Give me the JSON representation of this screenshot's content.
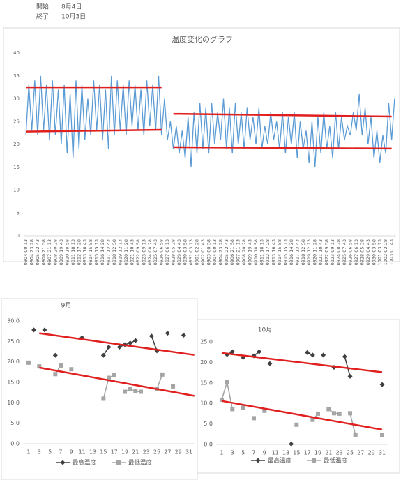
{
  "header": {
    "rows": [
      [
        "開始",
        "8月4日"
      ],
      [
        "終了",
        "10月3日"
      ]
    ]
  },
  "chart_data": [
    {
      "type": "line",
      "title": "温度変化のグラフ",
      "categories": [
        "0804 00:13",
        null,
        "0804 23:28",
        null,
        "0805 22:43",
        null,
        "0806 21:58",
        null,
        "0807 21:13",
        null,
        "0808 20:28",
        null,
        "0809 19:43",
        null,
        "0810 18:58",
        null,
        "0811 18:13",
        null,
        "0812 17:28",
        null,
        "0813 16:43",
        null,
        "0814 15:58",
        null,
        "0815 15:13",
        null,
        "0816 14:28",
        null,
        "0817 13:43",
        null,
        "0818 12:58",
        null,
        "0819 12:13",
        null,
        "0820 11:28",
        null,
        "0821 10:43",
        null,
        "0822 09:58",
        null,
        "0823 09:13",
        null,
        "0824 08:28",
        null,
        "0825 07:43",
        null,
        "0826 06:58",
        null,
        "0827 06:13",
        null,
        "0828 05:28",
        null,
        "0829 04:43",
        null,
        "0830 03:58",
        null,
        "0831 03:13",
        null,
        "0901 02:28",
        null,
        "0902 01:43",
        null,
        "0903 00:58",
        null,
        "0904 00:13",
        null,
        "0904 23:28",
        null,
        "0905 22:43",
        null,
        "0906 21:58",
        null,
        "0907 21:13",
        null,
        "0908 20:28",
        null,
        "0909 19:43",
        null,
        "0910 18:58",
        null,
        "0911 18:13",
        null,
        "0912 17:28",
        null,
        "0913 16:43",
        null,
        "0914 15:58",
        null,
        "0915 15:13",
        null,
        "0916 14:28",
        null,
        "0917 13:43",
        null,
        "0918 12:58",
        null,
        "0919 12:13",
        null,
        "0920 11:28",
        null,
        "0921 10:43",
        null,
        "0922 09:58",
        null,
        "0923 09:13",
        null,
        "0924 08:28",
        null,
        "0925 07:43",
        null,
        "0926 06:58",
        null,
        "0927 06:13",
        null,
        "0928 05:28",
        null,
        "0929 04:43",
        null,
        "0930 03:58",
        null,
        "1001 03:13",
        null,
        "1002 02:28",
        null,
        "1003 01:43",
        null
      ],
      "series": [
        {
          "color": "#5b9bd5",
          "values": [
            22,
            33,
            23,
            34,
            22,
            35,
            23,
            33,
            21,
            34,
            22,
            32,
            20,
            33,
            18,
            31,
            17,
            34,
            19,
            33,
            21,
            30,
            22,
            34,
            23,
            33,
            21,
            32,
            19,
            35,
            22,
            34,
            23,
            33,
            22,
            34,
            24,
            33,
            23,
            32,
            22,
            34,
            24,
            33,
            23,
            35,
            22,
            30,
            21,
            25,
            19,
            24,
            18,
            23,
            17,
            26,
            15,
            27,
            18,
            29,
            19,
            28,
            18,
            29,
            20,
            27,
            21,
            30,
            19,
            28,
            18,
            29,
            20,
            27,
            19,
            28,
            21,
            26,
            20,
            28,
            19,
            24,
            20,
            27,
            21,
            25,
            19,
            27,
            18,
            26,
            20,
            27,
            17,
            25,
            19,
            23,
            16,
            25,
            15,
            26,
            18,
            27,
            19,
            24,
            17,
            27,
            19,
            26,
            21,
            24,
            22,
            27,
            23,
            31,
            22,
            28,
            20,
            26,
            17,
            23,
            16,
            22,
            18,
            29,
            21,
            30
          ]
        }
      ],
      "ylim": [
        0,
        40
      ],
      "yticks": [
        0,
        5,
        10,
        15,
        20,
        25,
        30,
        35,
        40
      ],
      "trend_lines": [
        {
          "color": "#e0201f",
          "x": [
            "0804 00:13",
            "0826 06:58"
          ],
          "values": [
            32.5,
            32.5
          ]
        },
        {
          "color": "#e0201f",
          "x": [
            "0804 00:13",
            "0826 06:58"
          ],
          "values": [
            22.8,
            23.2
          ]
        },
        {
          "color": "#e0201f",
          "x": [
            "0828 05:28",
            "1003 01:43"
          ],
          "values": [
            26.7,
            26.1
          ]
        },
        {
          "color": "#e0201f",
          "x": [
            "0828 05:28",
            "1003 01:43"
          ],
          "values": [
            19.4,
            19.1
          ]
        }
      ]
    },
    {
      "type": "line",
      "title": "9月",
      "x": [
        1,
        2,
        3,
        4,
        5,
        6,
        7,
        8,
        9,
        10,
        11,
        12,
        13,
        14,
        15,
        16,
        17,
        18,
        19,
        20,
        21,
        22,
        23,
        24,
        25,
        26,
        27,
        28,
        29,
        30,
        31
      ],
      "xlim": [
        0,
        32
      ],
      "xticks": [
        1,
        3,
        5,
        7,
        9,
        11,
        13,
        15,
        17,
        19,
        21,
        23,
        25,
        27,
        29,
        31
      ],
      "ylim": [
        0,
        30
      ],
      "yticks": [
        {
          "value": 0,
          "label": "0.0"
        },
        {
          "value": 5,
          "label": "5.0"
        },
        {
          "value": 10,
          "label": "10.0"
        },
        {
          "value": 15,
          "label": "15.0"
        },
        {
          "value": 20,
          "label": "20.0"
        },
        {
          "value": 25,
          "label": "25.0"
        },
        {
          "value": 30,
          "label": "30.0"
        }
      ],
      "series": [
        {
          "name": "最高温度",
          "color": "#404040",
          "marker": "diamond",
          "values": [
            null,
            27.8,
            null,
            27.8,
            null,
            21.6,
            null,
            null,
            null,
            null,
            25.9,
            null,
            null,
            null,
            21.6,
            23.6,
            null,
            23.6,
            24.2,
            24.6,
            25.2,
            null,
            null,
            26.3,
            22.7,
            null,
            27.0,
            null,
            null,
            26.5,
            null
          ]
        },
        {
          "name": "最低温度",
          "color": "#a5a5a5",
          "marker": "square",
          "values": [
            19.8,
            null,
            18.9,
            null,
            null,
            17.0,
            19.1,
            null,
            18.2,
            null,
            null,
            null,
            null,
            null,
            11.0,
            16.1,
            16.7,
            null,
            12.7,
            13.3,
            12.8,
            12.7,
            null,
            null,
            13.4,
            16.9,
            null,
            14.0,
            null,
            null,
            null
          ]
        }
      ],
      "trend_lines": [
        {
          "color": "#e0201f",
          "x": [
            3,
            32
          ],
          "values": [
            27.0,
            21.7
          ]
        },
        {
          "color": "#e0201f",
          "x": [
            3,
            32
          ],
          "values": [
            18.6,
            11.7
          ]
        }
      ]
    },
    {
      "type": "line",
      "title": "10月",
      "x": [
        1,
        2,
        3,
        4,
        5,
        6,
        7,
        8,
        9,
        10,
        11,
        12,
        13,
        14,
        15,
        16,
        17,
        18,
        19,
        20,
        21,
        22,
        23,
        24,
        25,
        26,
        27,
        28,
        29,
        30,
        31
      ],
      "xlim": [
        0,
        32
      ],
      "xticks": [
        1,
        3,
        5,
        7,
        9,
        11,
        13,
        15,
        17,
        19,
        21,
        23,
        25,
        27,
        29,
        31
      ],
      "ylim": [
        0,
        25
      ],
      "yticks": [
        {
          "value": 0,
          "label": "0.0"
        },
        {
          "value": 5,
          "label": "5.0"
        },
        {
          "value": 10,
          "label": "10.0"
        },
        {
          "value": 15,
          "label": "15.0"
        },
        {
          "value": 20,
          "label": "20.0"
        },
        {
          "value": 25,
          "label": "25.0"
        }
      ],
      "series": [
        {
          "name": "最高温度",
          "color": "#404040",
          "marker": "diamond",
          "values": [
            null,
            21.9,
            22.6,
            null,
            21.2,
            null,
            21.6,
            22.6,
            null,
            19.7,
            null,
            null,
            null,
            0.1,
            null,
            null,
            22.4,
            21.8,
            null,
            21.8,
            null,
            18.8,
            null,
            21.4,
            16.6,
            null,
            null,
            null,
            null,
            null,
            14.6
          ]
        },
        {
          "name": "最低温度",
          "color": "#a5a5a5",
          "marker": "square",
          "values": [
            10.9,
            15.2,
            8.6,
            null,
            9.0,
            null,
            6.4,
            null,
            8.2,
            null,
            null,
            null,
            null,
            null,
            4.8,
            null,
            null,
            6.0,
            7.5,
            null,
            8.6,
            7.6,
            7.5,
            null,
            7.6,
            2.3,
            null,
            null,
            null,
            null,
            2.3
          ]
        }
      ],
      "trend_lines": [
        {
          "color": "#e0201f",
          "x": [
            1,
            31
          ],
          "values": [
            22.3,
            17.6
          ]
        },
        {
          "color": "#e0201f",
          "x": [
            1,
            31
          ],
          "values": [
            10.6,
            3.6
          ]
        }
      ]
    }
  ]
}
